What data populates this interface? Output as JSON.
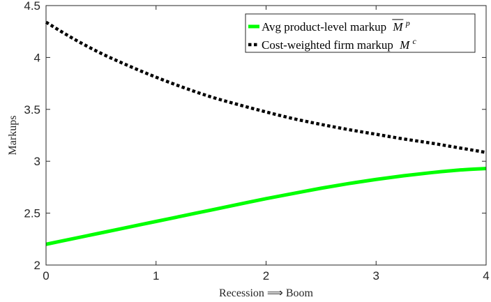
{
  "chart_data": {
    "type": "line",
    "xlabel": "Recession ⟹ Boom",
    "ylabel": "Markups",
    "xlim": [
      0,
      4
    ],
    "ylim": [
      2,
      4.5
    ],
    "xticks": [
      "0",
      "1",
      "2",
      "3",
      "4"
    ],
    "yticks": [
      "2",
      "2.5",
      "3",
      "3.5",
      "4",
      "4.5"
    ],
    "grid": false,
    "legend_position": "top-right",
    "series": [
      {
        "name_text": "Avg product-level markup",
        "name_math": "M",
        "name_sup": "p",
        "overline": true,
        "color": "#00ff00",
        "style": "solid",
        "x": [
          0,
          0.25,
          0.5,
          0.75,
          1,
          1.25,
          1.5,
          1.75,
          2,
          2.25,
          2.5,
          2.75,
          3,
          3.25,
          3.5,
          3.75,
          4
        ],
        "y": [
          2.2,
          2.255,
          2.31,
          2.365,
          2.42,
          2.475,
          2.53,
          2.585,
          2.64,
          2.69,
          2.74,
          2.785,
          2.825,
          2.86,
          2.89,
          2.915,
          2.93
        ]
      },
      {
        "name_text": "Cost-weighted firm markup",
        "name_math": "M",
        "name_sup": "c",
        "overline": false,
        "color": "#000000",
        "style": "dotted",
        "x": [
          0,
          0.25,
          0.5,
          0.75,
          1,
          1.25,
          1.5,
          1.75,
          2,
          2.25,
          2.5,
          2.75,
          3,
          3.25,
          3.5,
          3.75,
          4
        ],
        "y": [
          4.34,
          4.18,
          4.04,
          3.92,
          3.81,
          3.71,
          3.62,
          3.545,
          3.475,
          3.41,
          3.355,
          3.305,
          3.26,
          3.215,
          3.175,
          3.13,
          3.085
        ]
      }
    ]
  }
}
